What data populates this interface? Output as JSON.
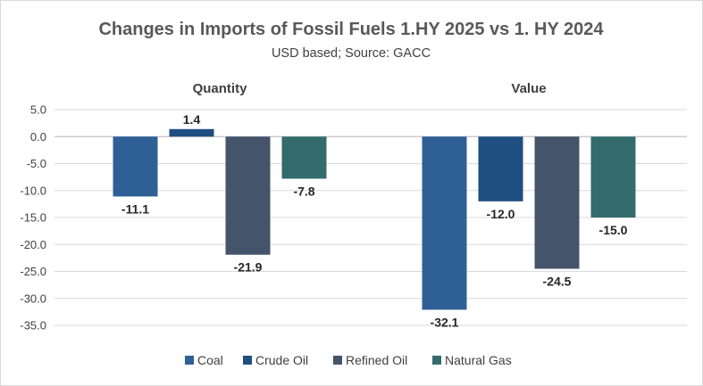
{
  "chart_data": {
    "type": "bar",
    "title": "Changes in Imports of Fossil Fuels 1.HY 2025 vs  1. HY 2024",
    "subtitle": "USD based; Source: GACC",
    "groups": [
      "Quantity",
      "Value"
    ],
    "series": [
      {
        "name": "Coal",
        "color": "#2e6096",
        "values": [
          -11.1,
          -32.1
        ],
        "labels": [
          "-11.1",
          "-32.1"
        ]
      },
      {
        "name": "Crude Oil",
        "color": "#1f4e82",
        "values": [
          1.4,
          -12.0
        ],
        "labels": [
          "1.4",
          "-12.0"
        ]
      },
      {
        "name": "Refined Oil",
        "color": "#44546a",
        "values": [
          -21.9,
          -24.5
        ],
        "labels": [
          "-21.9",
          "-24.5"
        ]
      },
      {
        "name": "Natural Gas",
        "color": "#346b6d",
        "values": [
          -7.8,
          -15.0
        ],
        "labels": [
          "-7.8",
          "-15.0"
        ]
      }
    ],
    "ylim": [
      -35,
      5
    ],
    "yticks": [
      "5.0",
      "0.0",
      "-5.0",
      "-10.0",
      "-15.0",
      "-20.0",
      "-25.0",
      "-30.0",
      "-35.0"
    ],
    "ytick_values": [
      5,
      0,
      -5,
      -10,
      -15,
      -20,
      -25,
      -30,
      -35
    ],
    "grid": true,
    "legend_position": "bottom"
  }
}
